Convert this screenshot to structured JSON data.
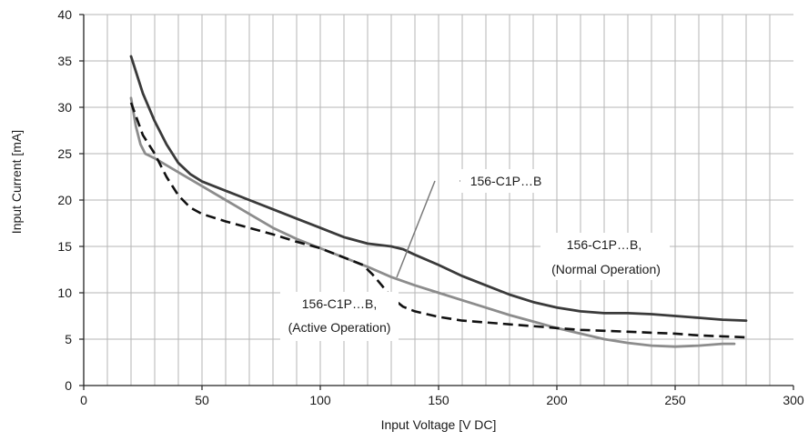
{
  "chart_data": {
    "type": "line",
    "title": "",
    "xlabel": "Input Voltage [V DC]",
    "ylabel": "Input Current [mA]",
    "xlim": [
      0,
      300
    ],
    "ylim": [
      0,
      40
    ],
    "x_ticks": [
      0,
      50,
      100,
      150,
      200,
      250,
      300
    ],
    "y_ticks": [
      0,
      5,
      10,
      15,
      20,
      25,
      30,
      35,
      40
    ],
    "x_minor_step": 10,
    "grid": true,
    "series": [
      {
        "color": "#3a3a3a",
        "dash": "solid",
        "points": [
          [
            20,
            35.5
          ],
          [
            25,
            31.5
          ],
          [
            30,
            28.5
          ],
          [
            35,
            26
          ],
          [
            40,
            24
          ],
          [
            45,
            22.8
          ],
          [
            50,
            22
          ],
          [
            60,
            21
          ],
          [
            70,
            20
          ],
          [
            80,
            19
          ],
          [
            90,
            18
          ],
          [
            100,
            17
          ],
          [
            110,
            16
          ],
          [
            120,
            15.3
          ],
          [
            130,
            15
          ],
          [
            135,
            14.7
          ],
          [
            140,
            14.1
          ],
          [
            150,
            13
          ],
          [
            160,
            11.8
          ],
          [
            170,
            10.8
          ],
          [
            180,
            9.8
          ],
          [
            190,
            9
          ],
          [
            200,
            8.4
          ],
          [
            210,
            8
          ],
          [
            220,
            7.8
          ],
          [
            230,
            7.8
          ],
          [
            240,
            7.7
          ],
          [
            250,
            7.5
          ],
          [
            260,
            7.3
          ],
          [
            270,
            7.1
          ],
          [
            280,
            7
          ]
        ]
      },
      {
        "color": "#8c8c8c",
        "dash": "solid",
        "points": [
          [
            20,
            31
          ],
          [
            22,
            28
          ],
          [
            24,
            26
          ],
          [
            26,
            25
          ],
          [
            30,
            24.5
          ],
          [
            40,
            23
          ],
          [
            50,
            21.5
          ],
          [
            60,
            20
          ],
          [
            70,
            18.5
          ],
          [
            80,
            17
          ],
          [
            90,
            15.8
          ],
          [
            100,
            14.8
          ],
          [
            110,
            13.8
          ],
          [
            120,
            12.8
          ],
          [
            130,
            11.7
          ],
          [
            140,
            10.8
          ],
          [
            150,
            10
          ],
          [
            160,
            9.2
          ],
          [
            170,
            8.4
          ],
          [
            180,
            7.6
          ],
          [
            190,
            6.9
          ],
          [
            200,
            6.2
          ],
          [
            210,
            5.6
          ],
          [
            220,
            5
          ],
          [
            230,
            4.6
          ],
          [
            240,
            4.3
          ],
          [
            250,
            4.2
          ],
          [
            260,
            4.3
          ],
          [
            270,
            4.5
          ],
          [
            275,
            4.5
          ]
        ]
      },
      {
        "color": "#111111",
        "dash": "dashed",
        "points": [
          [
            20,
            30.5
          ],
          [
            25,
            27
          ],
          [
            30,
            25
          ],
          [
            35,
            22.5
          ],
          [
            40,
            20.5
          ],
          [
            45,
            19.2
          ],
          [
            50,
            18.5
          ],
          [
            60,
            17.7
          ],
          [
            70,
            17
          ],
          [
            80,
            16.3
          ],
          [
            90,
            15.5
          ],
          [
            100,
            14.8
          ],
          [
            110,
            13.8
          ],
          [
            118,
            13
          ],
          [
            122,
            12
          ],
          [
            126,
            10.8
          ],
          [
            130,
            9.5
          ],
          [
            135,
            8.5
          ],
          [
            140,
            8
          ],
          [
            150,
            7.4
          ],
          [
            160,
            7
          ],
          [
            170,
            6.8
          ],
          [
            180,
            6.6
          ],
          [
            190,
            6.4
          ],
          [
            200,
            6.2
          ],
          [
            210,
            6
          ],
          [
            220,
            5.9
          ],
          [
            230,
            5.8
          ],
          [
            240,
            5.7
          ],
          [
            250,
            5.6
          ],
          [
            260,
            5.4
          ],
          [
            270,
            5.3
          ],
          [
            280,
            5.2
          ]
        ]
      }
    ],
    "annotations": [
      {
        "text": "156-C1P…B"
      },
      {
        "lines": [
          "156-C1P…B,",
          "(Normal Operation)"
        ]
      },
      {
        "lines": [
          "156-C1P…B,",
          "(Active Operation)"
        ]
      }
    ]
  }
}
